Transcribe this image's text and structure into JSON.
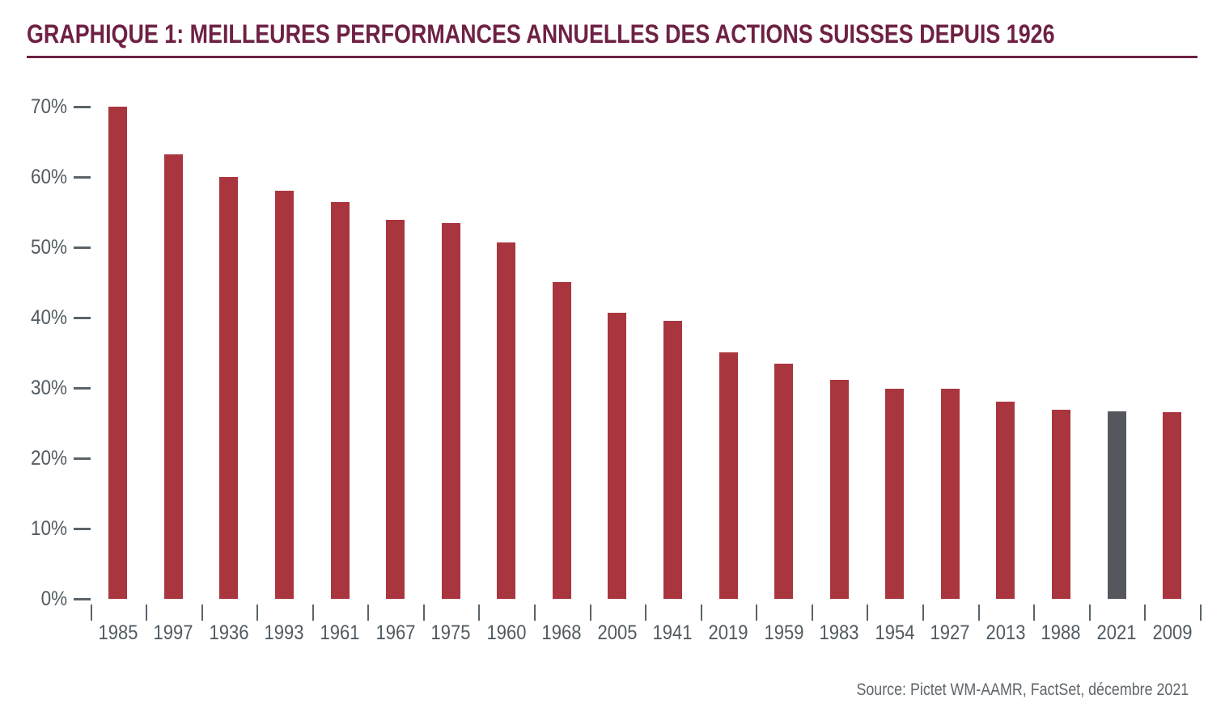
{
  "chart_data": {
    "type": "bar",
    "title": "GRAPHIQUE 1: MEILLEURES PERFORMANCES ANNUELLES DES ACTIONS SUISSES DEPUIS 1926",
    "categories": [
      "1985",
      "1997",
      "1936",
      "1993",
      "1961",
      "1967",
      "1975",
      "1960",
      "1968",
      "2005",
      "1941",
      "2019",
      "1959",
      "1983",
      "1954",
      "1927",
      "2013",
      "1988",
      "2021",
      "2009"
    ],
    "values": [
      70.0,
      63.2,
      60.0,
      58.0,
      56.4,
      53.9,
      53.5,
      50.7,
      45.1,
      40.7,
      39.5,
      35.0,
      33.4,
      31.1,
      29.9,
      29.9,
      28.1,
      26.9,
      26.7,
      26.5
    ],
    "highlight_category": "2021",
    "y_ticks": [
      "70%",
      "60%",
      "50%",
      "40%",
      "30%",
      "20%",
      "10%",
      "0%"
    ],
    "ylim": [
      0,
      70
    ],
    "xlabel": "",
    "ylabel": "",
    "grid": false,
    "legend": false,
    "colors": {
      "bar": "#A9363E",
      "highlight": "#54585C",
      "title": "#6E2144",
      "axis_text": "#515B61"
    },
    "source_note": "Source: Pictet WM-AAMR, FactSet, décembre 2021"
  }
}
